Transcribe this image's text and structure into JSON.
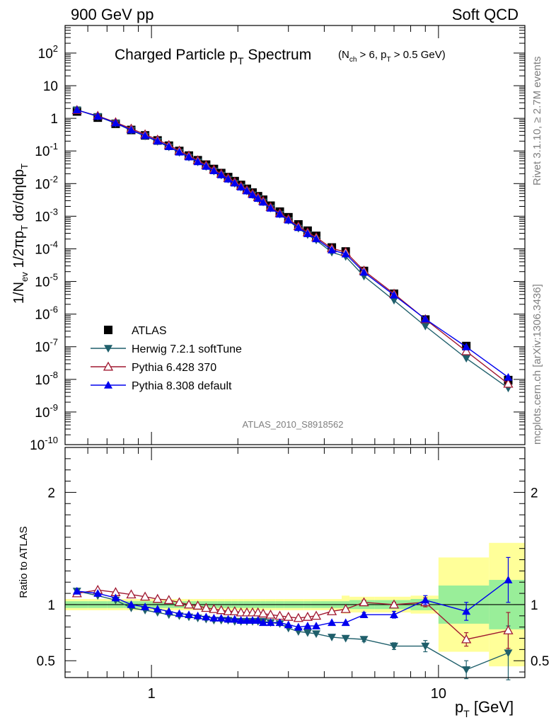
{
  "header": {
    "left": "900 GeV pp",
    "right": "Soft QCD"
  },
  "main_title": "Charged Particle p",
  "main_title_sub": "T",
  "main_title_word": " Spectrum",
  "cut_text": {
    "a": "(N",
    "b": "ch",
    "c": " > 6, p",
    "d": "T",
    "e": " > 0.5 GeV)"
  },
  "side_text": {
    "rivet": "Rivet 3.1.10, ≥ 2.7M events",
    "mcplots": "mcplots.cern.ch [arXiv:1306.3436]"
  },
  "analysis_id": "ATLAS_2010_S8918562",
  "ylabel_top": {
    "p1": "1/N",
    "s1": "ev",
    "p2": " 1/2πp",
    "s2": "T",
    "p3": " dσ/dηdp",
    "s3": "T"
  },
  "ylabel_bottom": "Ratio to ATLAS",
  "xlabel": {
    "p": "p",
    "s": "T",
    "unit": "  [GeV]"
  },
  "legend": [
    {
      "label": "ATLAS",
      "color": "#000000",
      "marker": "square"
    },
    {
      "label": "Herwig 7.2.1 softTune",
      "color": "#1f5f6b",
      "marker": "triangle-down"
    },
    {
      "label": "Pythia 6.428 370",
      "color": "#a01830",
      "marker": "triangle-open"
    },
    {
      "label": "Pythia 8.308 default",
      "color": "#0000ee",
      "marker": "triangle-up"
    }
  ],
  "chart_data": {
    "type": "scatter",
    "x_scale": "log",
    "xlim": [
      0.5,
      20
    ],
    "main": {
      "y_scale": "log",
      "ylim": [
        1e-10,
        700
      ],
      "y_ticks": [
        {
          "v": 100,
          "b": "10",
          "e": "2"
        },
        {
          "v": 10,
          "b": "10",
          "e": ""
        },
        {
          "v": 1,
          "b": "1",
          "e": ""
        },
        {
          "v": 0.1,
          "b": "10",
          "e": "-1"
        },
        {
          "v": 0.01,
          "b": "10",
          "e": "-2"
        },
        {
          "v": 0.001,
          "b": "10",
          "e": "-3"
        },
        {
          "v": 0.0001,
          "b": "10",
          "e": "-4"
        },
        {
          "v": 1e-05,
          "b": "10",
          "e": "-5"
        },
        {
          "v": 1e-06,
          "b": "10",
          "e": "-6"
        },
        {
          "v": 1e-07,
          "b": "10",
          "e": "-7"
        },
        {
          "v": 1e-08,
          "b": "10",
          "e": "-8"
        },
        {
          "v": 1e-09,
          "b": "10",
          "e": "-9"
        },
        {
          "v": 1e-10,
          "b": "10",
          "e": "-10"
        }
      ]
    },
    "ratio": {
      "y_scale": "linear",
      "ylim": [
        0.35,
        2.4
      ],
      "y_ticks": [
        0.5,
        1,
        2
      ],
      "y_tick_labels": [
        "0.5",
        "1",
        "2"
      ]
    },
    "x_tick_labels": [
      {
        "v": 1,
        "label": "1"
      },
      {
        "v": 10,
        "label": "10"
      }
    ],
    "x": [
      0.55,
      0.65,
      0.75,
      0.85,
      0.95,
      1.05,
      1.15,
      1.25,
      1.35,
      1.45,
      1.55,
      1.65,
      1.75,
      1.85,
      1.95,
      2.05,
      2.15,
      2.25,
      2.35,
      2.45,
      2.6,
      2.8,
      3.0,
      3.25,
      3.5,
      3.75,
      4.25,
      4.75,
      5.5,
      7.0,
      9.0,
      12.5,
      17.5
    ],
    "x_err": [
      [
        0.5,
        0.6
      ],
      [
        0.6,
        0.7
      ],
      [
        0.7,
        0.8
      ],
      [
        0.8,
        0.9
      ],
      [
        0.9,
        1.0
      ],
      [
        1.0,
        1.1
      ],
      [
        1.1,
        1.2
      ],
      [
        1.2,
        1.3
      ],
      [
        1.3,
        1.4
      ],
      [
        1.4,
        1.5
      ],
      [
        1.5,
        1.6
      ],
      [
        1.6,
        1.7
      ],
      [
        1.7,
        1.8
      ],
      [
        1.8,
        1.9
      ],
      [
        1.9,
        2.0
      ],
      [
        2.0,
        2.1
      ],
      [
        2.1,
        2.2
      ],
      [
        2.2,
        2.3
      ],
      [
        2.3,
        2.4
      ],
      [
        2.4,
        2.5
      ],
      [
        2.5,
        2.7
      ],
      [
        2.7,
        2.9
      ],
      [
        2.9,
        3.1
      ],
      [
        3.1,
        3.4
      ],
      [
        3.4,
        3.6
      ],
      [
        3.6,
        3.9
      ],
      [
        3.9,
        4.6
      ],
      [
        4.6,
        4.9
      ],
      [
        4.9,
        6.0
      ],
      [
        6.0,
        8.0
      ],
      [
        8.0,
        10.0
      ],
      [
        10.0,
        15.0
      ],
      [
        15.0,
        20.0
      ]
    ],
    "atlas": [
      1.62,
      1.05,
      0.68,
      0.44,
      0.3,
      0.21,
      0.145,
      0.1,
      0.072,
      0.052,
      0.038,
      0.028,
      0.021,
      0.0158,
      0.0119,
      0.0091,
      0.0069,
      0.0053,
      0.0041,
      0.0032,
      0.0021,
      0.00138,
      0.00093,
      0.00056,
      0.00036,
      0.00025,
      0.00011,
      8.3e-05,
      2.1e-05,
      4.2e-06,
      6.8e-07,
      1.05e-07,
      9.5e-09
    ],
    "band_inner": [
      0.03,
      0.03,
      0.03,
      0.03,
      0.03,
      0.03,
      0.03,
      0.03,
      0.03,
      0.03,
      0.03,
      0.03,
      0.03,
      0.03,
      0.03,
      0.03,
      0.03,
      0.03,
      0.03,
      0.03,
      0.03,
      0.03,
      0.03,
      0.03,
      0.03,
      0.03,
      0.03,
      0.03,
      0.04,
      0.04,
      0.05,
      0.17,
      0.22
    ],
    "band_outer": [
      0.05,
      0.05,
      0.05,
      0.05,
      0.05,
      0.05,
      0.05,
      0.05,
      0.05,
      0.05,
      0.05,
      0.05,
      0.05,
      0.05,
      0.05,
      0.05,
      0.05,
      0.05,
      0.05,
      0.05,
      0.05,
      0.05,
      0.05,
      0.05,
      0.05,
      0.05,
      0.05,
      0.08,
      0.07,
      0.07,
      0.08,
      0.42,
      0.55
    ],
    "series": [
      {
        "name": "Herwig 7.2.1 softTune",
        "color": "#1f5f6b",
        "marker": "triangle-down",
        "ratio": [
          1.12,
          1.08,
          1.04,
          0.97,
          0.95,
          0.93,
          0.91,
          0.9,
          0.89,
          0.88,
          0.87,
          0.86,
          0.86,
          0.86,
          0.85,
          0.85,
          0.85,
          0.85,
          0.85,
          0.85,
          0.84,
          0.83,
          0.79,
          0.76,
          0.75,
          0.74,
          0.71,
          0.7,
          0.69,
          0.63,
          0.63,
          0.42,
          0.57
        ],
        "ratio_err": [
          0.01,
          0.01,
          0.01,
          0.01,
          0.01,
          0.01,
          0.01,
          0.01,
          0.01,
          0.01,
          0.01,
          0.01,
          0.01,
          0.01,
          0.01,
          0.01,
          0.01,
          0.01,
          0.01,
          0.01,
          0.01,
          0.01,
          0.01,
          0.01,
          0.01,
          0.01,
          0.01,
          0.01,
          0.02,
          0.03,
          0.05,
          0.08,
          0.24
        ]
      },
      {
        "name": "Pythia 6.428 370",
        "color": "#a01830",
        "marker": "triangle-open",
        "ratio": [
          1.1,
          1.13,
          1.11,
          1.09,
          1.07,
          1.05,
          1.04,
          1.02,
          1.0,
          0.99,
          0.97,
          0.96,
          0.95,
          0.94,
          0.94,
          0.93,
          0.93,
          0.93,
          0.93,
          0.92,
          0.91,
          0.9,
          0.89,
          0.88,
          0.89,
          0.9,
          0.94,
          0.96,
          1.02,
          1.0,
          1.02,
          0.69,
          0.77
        ],
        "ratio_err": [
          0.01,
          0.01,
          0.01,
          0.01,
          0.01,
          0.01,
          0.01,
          0.01,
          0.01,
          0.01,
          0.01,
          0.01,
          0.01,
          0.01,
          0.01,
          0.01,
          0.01,
          0.01,
          0.01,
          0.01,
          0.01,
          0.01,
          0.01,
          0.01,
          0.01,
          0.01,
          0.01,
          0.01,
          0.02,
          0.02,
          0.04,
          0.06,
          0.16
        ]
      },
      {
        "name": "Pythia 8.308 default",
        "color": "#0000ee",
        "marker": "triangle-up",
        "ratio": [
          1.12,
          1.1,
          1.06,
          1.0,
          0.98,
          0.96,
          0.94,
          0.92,
          0.91,
          0.9,
          0.89,
          0.88,
          0.88,
          0.87,
          0.87,
          0.86,
          0.86,
          0.86,
          0.86,
          0.84,
          0.84,
          0.84,
          0.82,
          0.8,
          0.81,
          0.81,
          0.84,
          0.84,
          0.91,
          0.91,
          1.04,
          0.94,
          1.22
        ],
        "ratio_err": [
          0.01,
          0.01,
          0.01,
          0.01,
          0.01,
          0.01,
          0.01,
          0.01,
          0.01,
          0.01,
          0.01,
          0.01,
          0.01,
          0.01,
          0.01,
          0.01,
          0.01,
          0.01,
          0.01,
          0.01,
          0.01,
          0.01,
          0.01,
          0.01,
          0.01,
          0.01,
          0.01,
          0.01,
          0.02,
          0.03,
          0.04,
          0.08,
          0.2
        ]
      }
    ]
  }
}
